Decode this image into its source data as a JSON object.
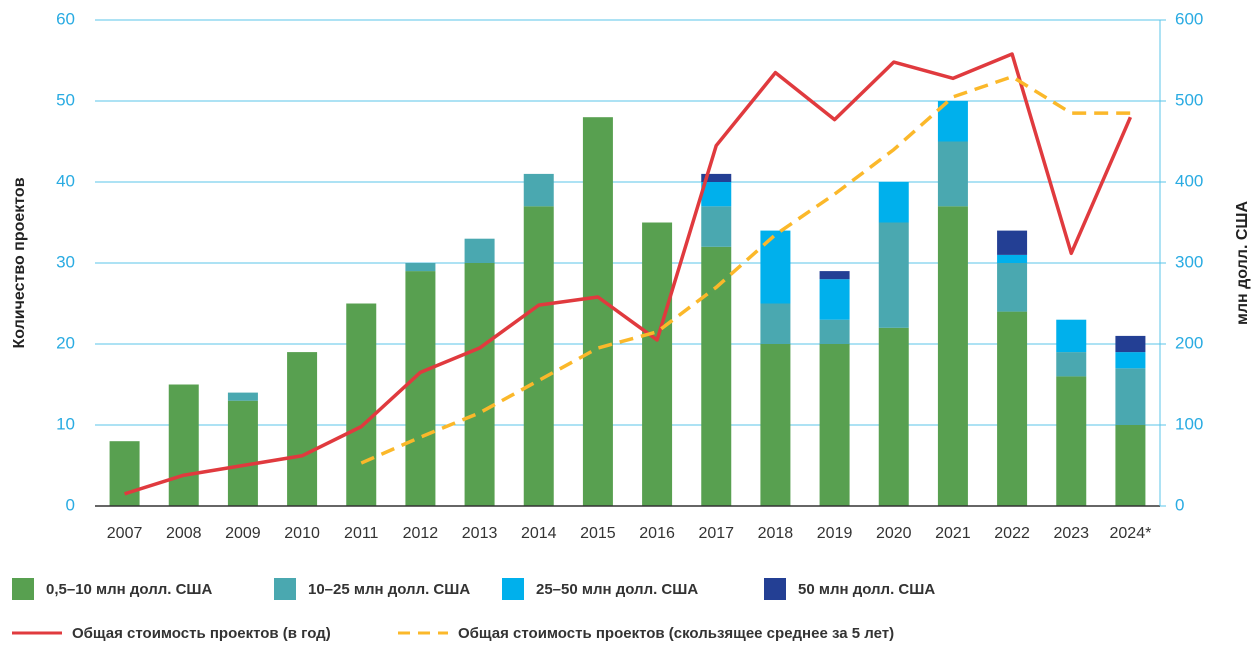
{
  "chart_data": {
    "type": "bar",
    "y_label": "Количество проектов",
    "y2_label": "млн долл. США",
    "categories": [
      "2007",
      "2008",
      "2009",
      "2010",
      "2011",
      "2012",
      "2013",
      "2014",
      "2015",
      "2016",
      "2017",
      "2018",
      "2019",
      "2020",
      "2021",
      "2022",
      "2023",
      "2024*"
    ],
    "ylim": [
      0,
      60
    ],
    "yticks": [
      0,
      10,
      20,
      30,
      40,
      50,
      60
    ],
    "y2lim": [
      0,
      600
    ],
    "y2ticks": [
      0,
      100,
      200,
      300,
      400,
      500,
      600
    ],
    "grid": true,
    "stacked": true,
    "series": [
      {
        "name": "0,5–10 млн долл. США",
        "color": "#58a050",
        "values": [
          8,
          15,
          13,
          19,
          25,
          29,
          30,
          37,
          48,
          35,
          32,
          20,
          20,
          22,
          37,
          24,
          16,
          10
        ]
      },
      {
        "name": "10–25 млн долл. США",
        "color": "#4aa8b0",
        "values": [
          0,
          0,
          1,
          0,
          0,
          1,
          3,
          4,
          0,
          0,
          5,
          5,
          3,
          13,
          8,
          6,
          3,
          7
        ]
      },
      {
        "name": "25–50 млн долл. США",
        "color": "#00b0ec",
        "values": [
          0,
          0,
          0,
          0,
          0,
          0,
          0,
          0,
          0,
          0,
          3,
          9,
          5,
          5,
          5,
          1,
          4,
          2
        ]
      },
      {
        "name": "50 млн долл. США",
        "color": "#233f94",
        "values": [
          0,
          0,
          0,
          0,
          0,
          0,
          0,
          0,
          0,
          0,
          1,
          0,
          1,
          0,
          0,
          3,
          0,
          2
        ]
      },
      {
        "name": "Общая стоимость проектов (в год)",
        "color": "#e03a3e",
        "type": "line",
        "axis": "y2",
        "values": [
          15,
          38,
          50,
          62,
          98,
          165,
          195,
          248,
          258,
          205,
          445,
          535,
          477,
          548,
          528,
          558,
          312,
          480
        ]
      },
      {
        "name": "Общая стоимость проектов (скользящее среднее за 5 лет)",
        "color": "#fbb82a",
        "type": "line",
        "dashed": true,
        "axis": "y2",
        "values": [
          null,
          null,
          null,
          null,
          53,
          85,
          115,
          155,
          195,
          215,
          270,
          335,
          385,
          440,
          505,
          530,
          485,
          485
        ]
      }
    ]
  }
}
